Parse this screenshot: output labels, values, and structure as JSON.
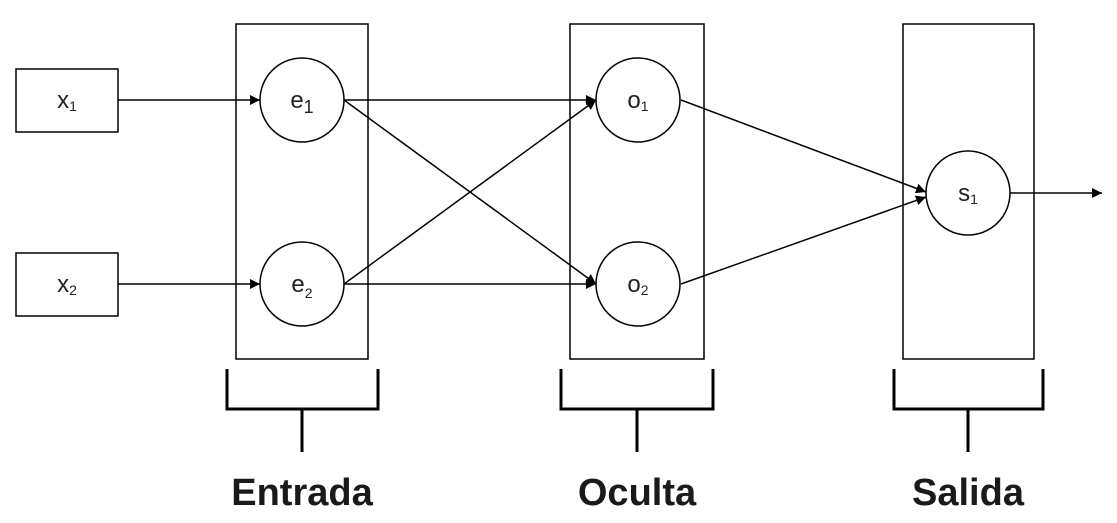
{
  "inputs": [
    {
      "base": "x",
      "sub": "1"
    },
    {
      "base": "x",
      "sub": "2"
    }
  ],
  "entrada_nodes": [
    {
      "base": "e",
      "sub": "1"
    },
    {
      "base": "e",
      "sub": "2"
    }
  ],
  "oculta_nodes": [
    {
      "base": "o",
      "sub": "1"
    },
    {
      "base": "o",
      "sub": "2"
    }
  ],
  "salida_nodes": [
    {
      "base": "s",
      "sub": "1"
    }
  ],
  "layers": {
    "entrada": "Entrada",
    "oculta": "Oculta",
    "salida": "Salida"
  }
}
